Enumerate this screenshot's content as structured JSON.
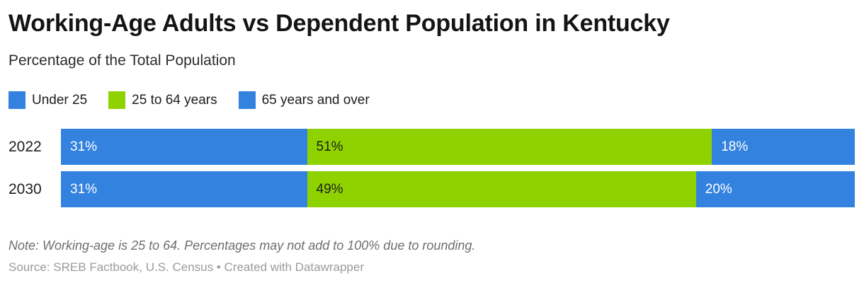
{
  "header": {
    "title": "Working-Age Adults vs Dependent Population in Kentucky",
    "subtitle": "Percentage of the Total Population"
  },
  "colors": {
    "blue": "#3382e0",
    "green": "#8ed300",
    "text_on_blue": "#ffffff",
    "text_on_green": "#1d1d1d"
  },
  "chart_data": {
    "type": "bar",
    "orientation": "horizontal",
    "stacked": true,
    "grid": false,
    "legend_position": "top",
    "xlim": [
      0,
      100
    ],
    "value_suffix": "%",
    "categories": [
      "2022",
      "2030"
    ],
    "series": [
      {
        "name": "Under 25",
        "color": "#3382e0",
        "label_color": "#ffffff",
        "values": [
          31,
          31
        ]
      },
      {
        "name": "25 to 64 years",
        "color": "#8ed300",
        "label_color": "#1d1d1d",
        "values": [
          51,
          49
        ]
      },
      {
        "name": "65 years and over",
        "color": "#3382e0",
        "label_color": "#ffffff",
        "values": [
          18,
          20
        ]
      }
    ],
    "title": "Working-Age Adults vs Dependent Population in Kentucky",
    "xlabel": "",
    "ylabel": ""
  },
  "footer": {
    "note": "Note: Working-age is 25 to 64. Percentages may not add to 100% due to rounding.",
    "source": "Source: SREB Factbook, U.S. Census • Created with Datawrapper"
  }
}
